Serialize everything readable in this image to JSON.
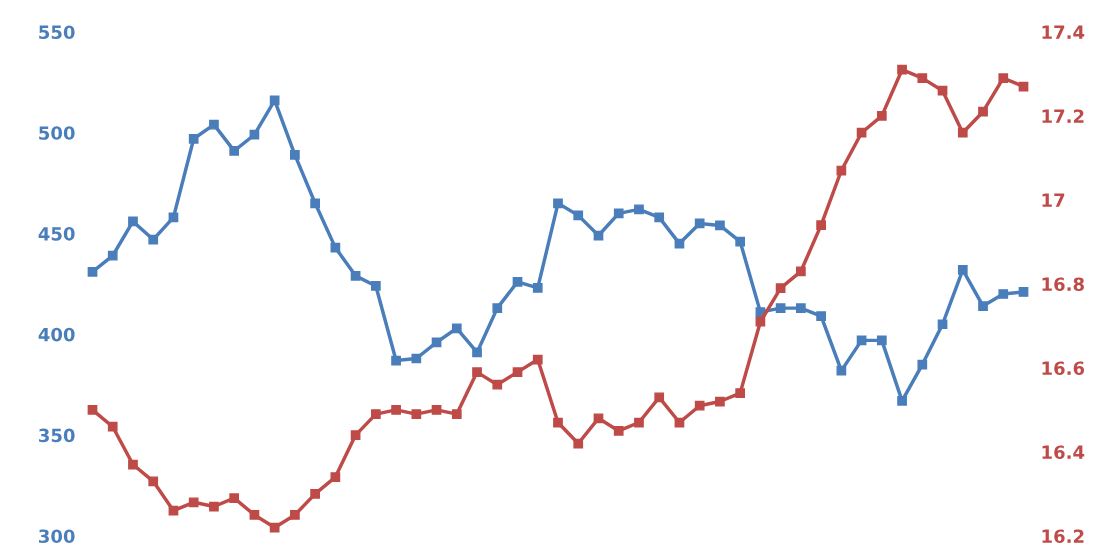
{
  "chart_data": {
    "type": "line",
    "categories": [
      null,
      null,
      null,
      null,
      null,
      null,
      null,
      null,
      null,
      null,
      null,
      null,
      null,
      null,
      null,
      null,
      null,
      null,
      null,
      null,
      null,
      null,
      null,
      null,
      null,
      null,
      null,
      null,
      null,
      null,
      null,
      null,
      null,
      null,
      null,
      null,
      null,
      null,
      null,
      null,
      null,
      null,
      null,
      null,
      null,
      null,
      null
    ],
    "series": [
      {
        "color": "#4a7ebb",
        "axis": "y",
        "values": [
          431,
          439,
          456,
          447,
          458,
          497,
          504,
          491,
          499,
          516,
          489,
          465,
          443,
          429,
          424,
          387,
          388,
          396,
          403,
          391,
          413,
          426,
          423,
          465,
          459,
          449,
          460,
          462,
          458,
          445,
          455,
          454,
          446,
          411,
          413,
          413,
          409,
          382,
          397,
          397,
          367,
          385,
          405,
          432,
          414,
          420,
          421
        ]
      },
      {
        "color": "#be4b48",
        "axis": "y2",
        "values": [
          16.5,
          16.46,
          16.37,
          16.33,
          16.26,
          16.28,
          16.27,
          16.29,
          16.25,
          16.22,
          16.25,
          16.3,
          16.34,
          16.44,
          16.49,
          16.5,
          16.49,
          16.5,
          16.49,
          16.59,
          16.56,
          16.59,
          16.62,
          16.47,
          16.42,
          16.48,
          16.45,
          16.47,
          16.53,
          16.47,
          16.51,
          16.52,
          16.54,
          16.71,
          16.79,
          16.83,
          16.94,
          17.07,
          17.16,
          17.2,
          17.31,
          17.29,
          17.26,
          17.16,
          17.21,
          17.29,
          17.27
        ]
      }
    ],
    "ylim": [
      300,
      550
    ],
    "yticks": [
      300,
      350,
      400,
      450,
      500,
      550
    ],
    "y2lim": [
      16.2,
      17.4
    ],
    "y2ticks": [
      16.2,
      16.4,
      16.6,
      16.8,
      17,
      17.2,
      17.4
    ],
    "tick_labels": "y",
    "grid": false,
    "legend": false,
    "marker": "square",
    "line_style": "solid"
  }
}
